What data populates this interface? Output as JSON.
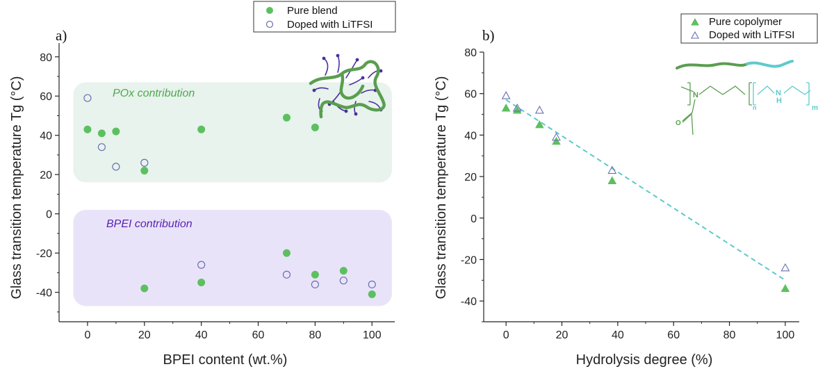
{
  "colors": {
    "green": "#5cc05f",
    "hollow": "#6a6fb0",
    "pox_region": "#e7f3ec",
    "bpei_region": "#e9e3fa",
    "pox_text": "#4ea84f",
    "bpei_text": "#5a22b0",
    "fit_line": "#5cc9cc",
    "polymer_green": "#5a9e50",
    "polymer_cyan": "#5ecacd",
    "bpei_branch": "#4a2fa0"
  },
  "chart_data": [
    {
      "type": "scatter",
      "panel_label": "a)",
      "xlabel": "BPEI content (wt.%)",
      "ylabel": "Glass transition temperature Tg (°C)",
      "xlim": [
        -10,
        108
      ],
      "ylim": [
        -55,
        87
      ],
      "xticks": [
        0,
        20,
        40,
        60,
        80,
        100
      ],
      "yticks": [
        -40,
        -20,
        0,
        20,
        40,
        60,
        80
      ],
      "grid": false,
      "legend_position": "top-right",
      "series": [
        {
          "name": "Pure blend",
          "marker": "filled-circle",
          "points": [
            [
              0,
              43
            ],
            [
              5,
              41
            ],
            [
              10,
              42
            ],
            [
              20,
              22
            ],
            [
              40,
              43
            ],
            [
              70,
              49
            ],
            [
              80,
              44
            ],
            [
              20,
              -38
            ],
            [
              40,
              -35
            ],
            [
              70,
              -20
            ],
            [
              80,
              -31
            ],
            [
              90,
              -29
            ],
            [
              100,
              -41
            ]
          ]
        },
        {
          "name": "Doped with LiTFSI",
          "marker": "hollow-circle",
          "points": [
            [
              0,
              59
            ],
            [
              5,
              34
            ],
            [
              10,
              24
            ],
            [
              20,
              26
            ],
            [
              40,
              -26
            ],
            [
              70,
              -31
            ],
            [
              80,
              -36
            ],
            [
              90,
              -34
            ],
            [
              100,
              -36
            ]
          ]
        }
      ],
      "regions": [
        {
          "label": "POx contribution",
          "x": [
            -5,
            107
          ],
          "y": [
            16,
            67
          ]
        },
        {
          "label": "BPEI contribution",
          "x": [
            -5,
            107
          ],
          "y": [
            -47,
            2
          ]
        }
      ]
    },
    {
      "type": "scatter",
      "panel_label": "b)",
      "xlabel": "Hydrolysis degree (%)",
      "ylabel": "Glass transition temperature Tg (°C)",
      "xlim": [
        -8,
        105
      ],
      "ylim": [
        -50,
        80
      ],
      "xticks": [
        0,
        20,
        40,
        60,
        80,
        100
      ],
      "yticks": [
        -40,
        -20,
        0,
        20,
        40,
        60,
        80
      ],
      "grid": false,
      "legend_position": "top-right",
      "series": [
        {
          "name": "Pure copolymer",
          "marker": "filled-triangle",
          "points": [
            [
              0,
              53
            ],
            [
              4,
              52
            ],
            [
              12,
              45
            ],
            [
              18,
              37
            ],
            [
              38,
              18
            ],
            [
              100,
              -34
            ]
          ]
        },
        {
          "name": "Doped with LiTFSI",
          "marker": "hollow-triangle",
          "points": [
            [
              0,
              59
            ],
            [
              4,
              53
            ],
            [
              12,
              52
            ],
            [
              18,
              39
            ],
            [
              38,
              23
            ],
            [
              100,
              -24
            ]
          ]
        }
      ],
      "fit_line": {
        "x": [
          0,
          100
        ],
        "y": [
          57,
          -30
        ]
      },
      "structure_labels": {
        "n_atom": "N",
        "nh_atom": "N",
        "nh_h": "H",
        "n_sub": "n",
        "m_sub": "m",
        "carbonyl_o": "O"
      }
    }
  ]
}
